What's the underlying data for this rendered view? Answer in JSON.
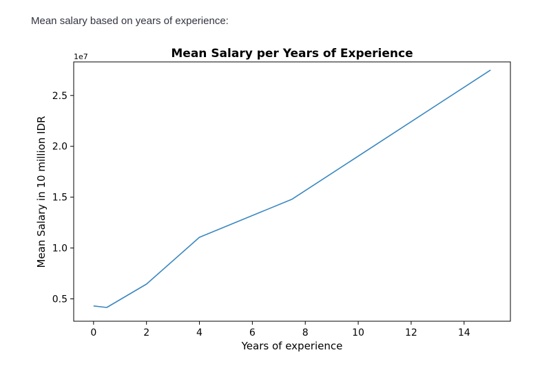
{
  "page": {
    "caption": "Mean salary based on years of experience:"
  },
  "chart_data": {
    "type": "line",
    "title": "Mean Salary per Years of Experience",
    "xlabel": "Years of experience",
    "ylabel": "Mean Salary in 10 million IDR",
    "y_offset_label": "1e7",
    "xlim": [
      -0.75,
      15.75
    ],
    "ylim": [
      2.8,
      28.3
    ],
    "xticks": [
      0,
      2,
      4,
      6,
      8,
      10,
      12,
      14
    ],
    "xtick_labels": [
      "0",
      "2",
      "4",
      "6",
      "8",
      "10",
      "12",
      "14"
    ],
    "yticks": [
      5,
      10,
      15,
      20,
      25
    ],
    "ytick_labels": [
      "0.5",
      "1.0",
      "1.5",
      "2.0",
      "2.5"
    ],
    "series": [
      {
        "name": "Mean Salary",
        "color": "#3a87c0",
        "x": [
          0,
          0.5,
          2,
          4,
          7.5,
          15
        ],
        "y": [
          4.3,
          4.15,
          6.45,
          11.05,
          14.8,
          27.5
        ]
      }
    ],
    "grid": false
  }
}
